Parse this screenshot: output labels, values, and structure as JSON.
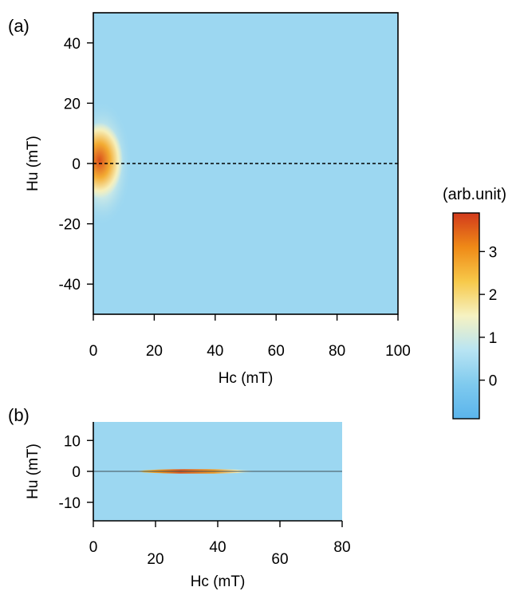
{
  "chart_data": [
    {
      "panel_label": "(a)",
      "type": "heatmap",
      "xlabel": "Hc (mT)",
      "ylabel": "Hu (mT)",
      "xlim": [
        0,
        100
      ],
      "ylim": [
        -50,
        50
      ],
      "xticks": [
        0,
        20,
        40,
        60,
        80,
        100
      ],
      "xtick_labels": [
        "0",
        "20",
        "40",
        "60",
        "80",
        "100"
      ],
      "yticks": [
        40,
        20,
        0,
        -20,
        -40
      ],
      "ytick_labels": [
        "40",
        "20",
        "0",
        "-20",
        "-40"
      ],
      "background_value": 0.3,
      "features": [
        {
          "hc": 2,
          "hu": 1,
          "peak": 3.7,
          "width_hc": 3.5,
          "width_hu": 7
        },
        {
          "hc": 3,
          "hu": 0,
          "peak": 1.5,
          "width_hc": 6,
          "width_hu": 13
        }
      ],
      "reference_line": {
        "style": "dashed",
        "hu": 0,
        "hc_range": [
          0,
          100
        ]
      }
    },
    {
      "panel_label": "(b)",
      "type": "heatmap",
      "xlabel": "Hc (mT)",
      "ylabel": "Hu (mT)",
      "xlim": [
        0,
        80
      ],
      "ylim": [
        -16,
        16
      ],
      "xticks": [
        0,
        20,
        40,
        60,
        80
      ],
      "xtick_labels": [
        "0",
        "20",
        "40",
        "60",
        "80"
      ],
      "yticks": [
        10,
        0,
        -10
      ],
      "ytick_labels": [
        "10",
        "0",
        "-10"
      ],
      "background_value": 0.3,
      "features": [
        {
          "hc_range": [
            14,
            52
          ],
          "center_hc": 28,
          "hu": 0,
          "peak": 3.6,
          "width_hu": 0.6
        }
      ],
      "reference_line": {
        "style": "solid",
        "hu": 0,
        "hc_range": [
          0,
          80
        ]
      }
    }
  ],
  "colorbar": {
    "label": "(arb.unit)",
    "range": [
      -0.9,
      3.9
    ],
    "ticks": [
      3,
      2,
      1,
      0
    ],
    "tick_labels": [
      "3",
      "2",
      "1",
      "0"
    ],
    "colors": [
      "#5ab4ec",
      "#7fcaee",
      "#b8e4f3",
      "#f6f2c2",
      "#f7c94a",
      "#ef8a17",
      "#d23a1c"
    ]
  }
}
